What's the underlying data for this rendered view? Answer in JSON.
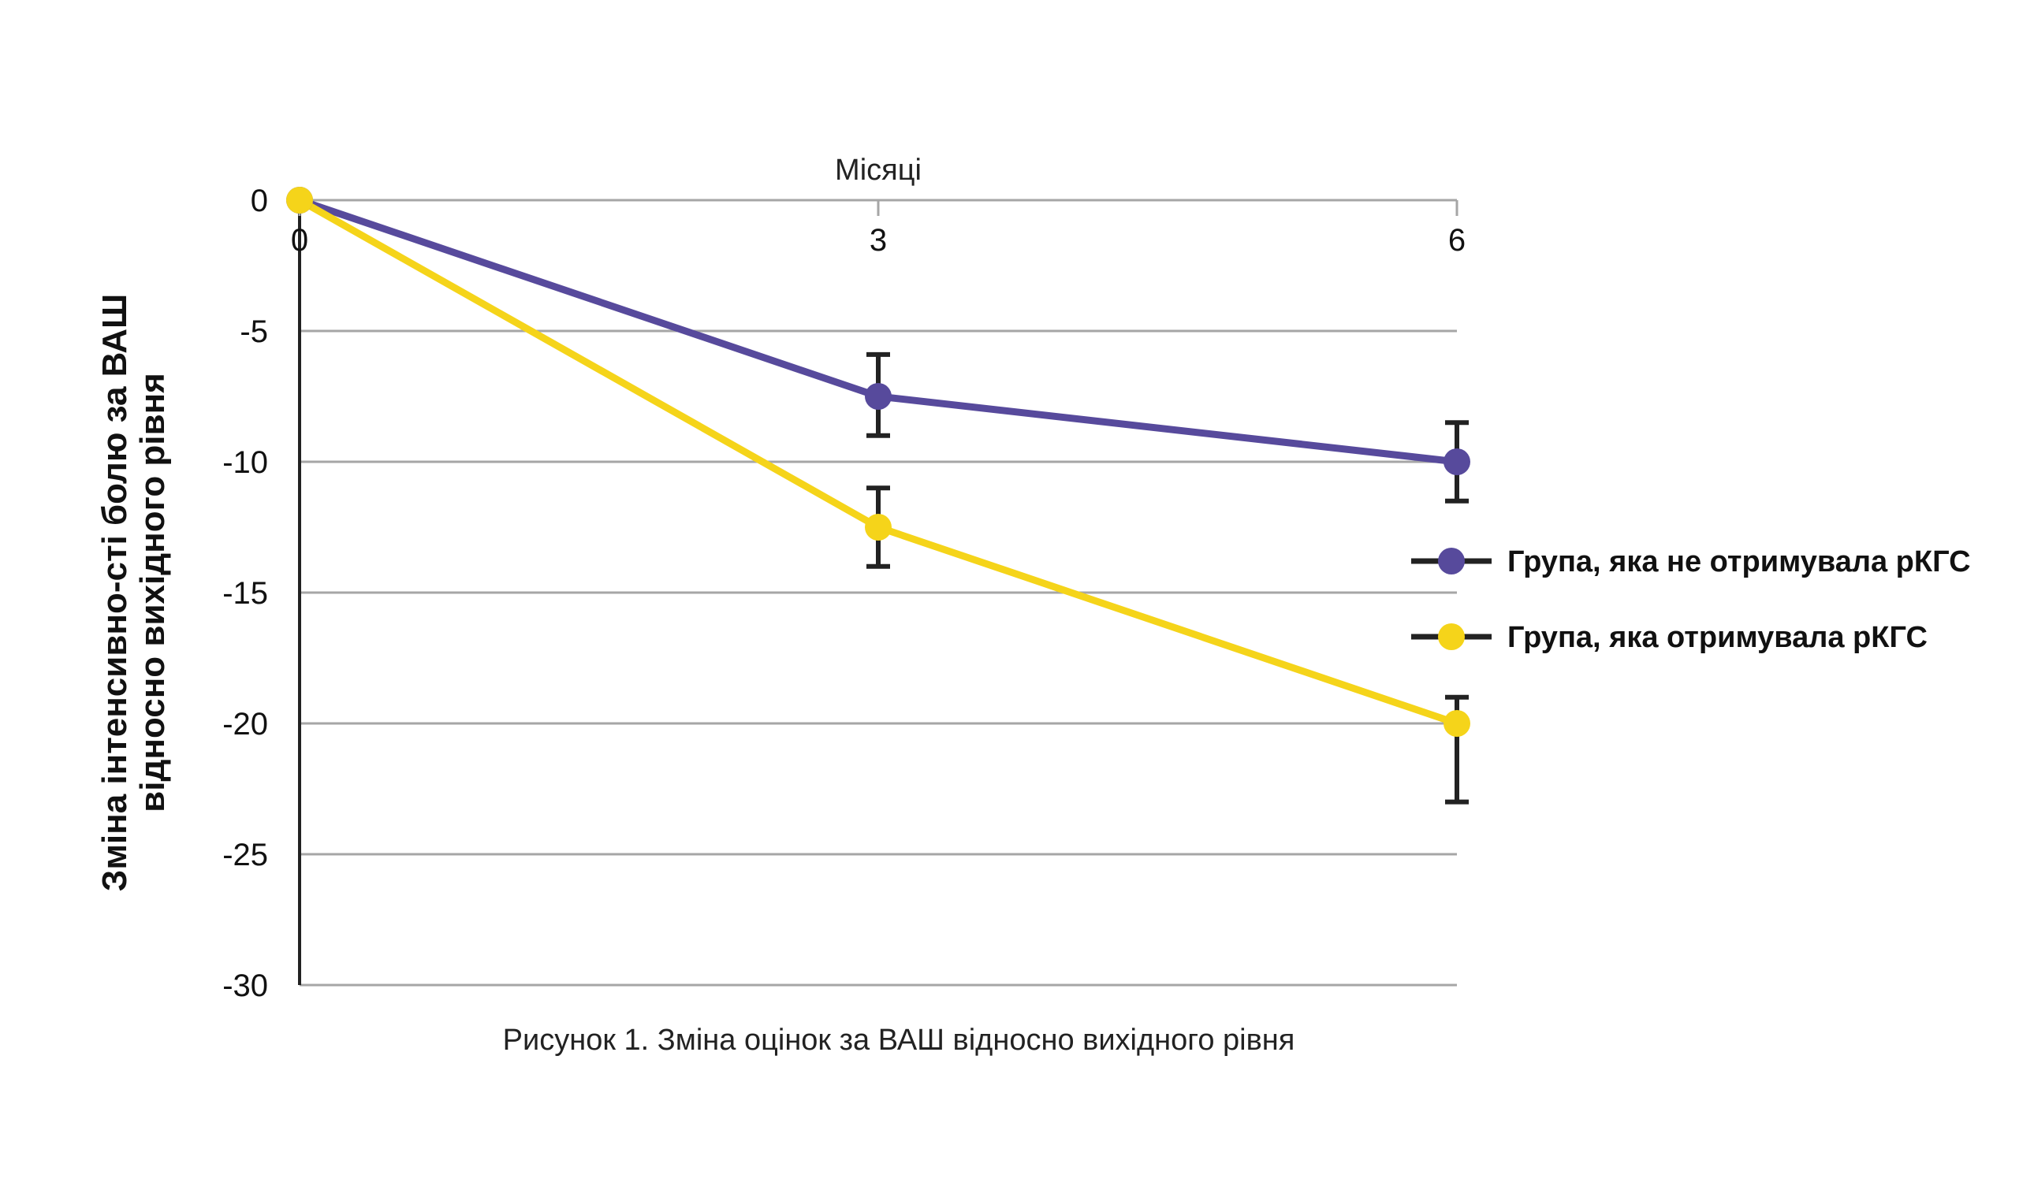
{
  "chart_data": {
    "type": "line",
    "title": "",
    "xlabel": "Місяці",
    "ylabel_lines": [
      "Зміна інтенсивно-сті болю за ВАШ",
      "відносно вихідного рівня"
    ],
    "x": [
      0,
      3,
      6
    ],
    "x_tick_labels": [
      "0",
      "3",
      "6"
    ],
    "y_ticks": [
      0,
      -5,
      -10,
      -15,
      -20,
      -25,
      -30
    ],
    "y_tick_labels": [
      "0",
      "-5",
      "-10",
      "-15",
      "-20",
      "-25",
      "-30"
    ],
    "ylim": [
      -30,
      0
    ],
    "grid": true,
    "legend_position": "right",
    "series": [
      {
        "name": "Група, яка не отримувала рКГС",
        "color": "#574a9c",
        "values": [
          0,
          -7.5,
          -10
        ],
        "error_low": [
          null,
          -9.0,
          -11.5
        ],
        "error_high": [
          null,
          -5.9,
          -8.5
        ]
      },
      {
        "name": "Група, яка отримувала рКГС",
        "color": "#f5d41a",
        "values": [
          0,
          -12.5,
          -20
        ],
        "error_low": [
          null,
          -14.0,
          -23.0
        ],
        "error_high": [
          null,
          -11.0,
          -19.0
        ]
      }
    ],
    "caption": "Рисунок 1. Зміна оцінок за ВАШ відносно вихідного рівня"
  }
}
